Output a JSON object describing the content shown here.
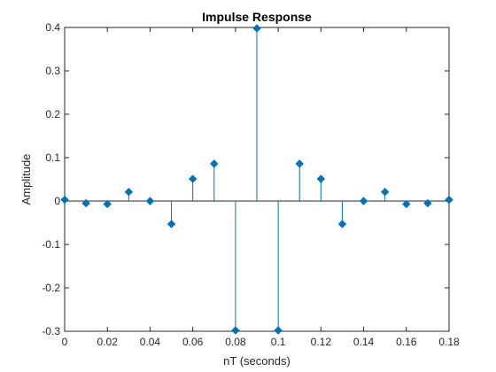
{
  "chart_data": {
    "type": "stem",
    "title": "Impulse Response",
    "xlabel": "nT (seconds)",
    "ylabel": "Amplitude",
    "xlim": [
      0,
      0.18
    ],
    "ylim": [
      -0.3,
      0.4
    ],
    "xticks": [
      0,
      0.02,
      0.04,
      0.06,
      0.08,
      0.1,
      0.12,
      0.14,
      0.16,
      0.18
    ],
    "xtick_labels": [
      "0",
      "0.02",
      "0.04",
      "0.06",
      "0.08",
      "0.1",
      "0.12",
      "0.14",
      "0.16",
      "0.18"
    ],
    "yticks": [
      -0.3,
      -0.2,
      -0.1,
      0,
      0.1,
      0.2,
      0.3,
      0.4
    ],
    "ytick_labels": [
      "-0.3",
      "-0.2",
      "-0.1",
      "0",
      "0.1",
      "0.2",
      "0.3",
      "0.4"
    ],
    "grid": false,
    "baseline": 0,
    "color": "#0072BD",
    "x": [
      0,
      0.01,
      0.02,
      0.03,
      0.04,
      0.05,
      0.06,
      0.07,
      0.08,
      0.09,
      0.1,
      0.11,
      0.12,
      0.13,
      0.14,
      0.15,
      0.16,
      0.17,
      0.18
    ],
    "values": [
      0.003,
      -0.005,
      -0.007,
      0.021,
      0,
      -0.053,
      0.051,
      0.086,
      -0.298,
      0.398,
      -0.298,
      0.086,
      0.051,
      -0.053,
      0,
      0.021,
      -0.007,
      -0.005,
      0.003
    ]
  }
}
